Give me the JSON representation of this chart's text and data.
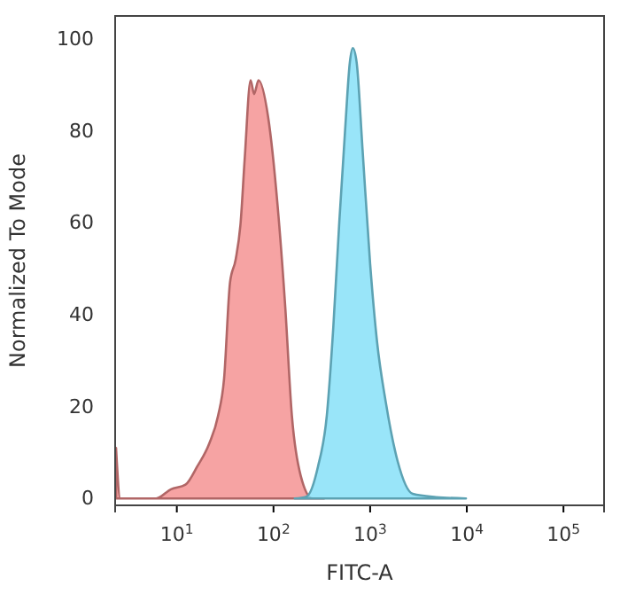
{
  "chart_data": {
    "type": "area",
    "xlabel": "FITC-A",
    "ylabel": "Normalized To Mode",
    "log": "x",
    "xlim": [
      2.3,
      263000
    ],
    "ylim": [
      -1.5,
      105
    ],
    "xticks": [
      {
        "value": 10,
        "label": "10$^{1}$"
      },
      {
        "value": 100,
        "label": "10$^{2}$"
      },
      {
        "value": 1000,
        "label": "10$^{3}$"
      },
      {
        "value": 10000,
        "label": "10$^{4}$"
      },
      {
        "value": 100000,
        "label": "10$^{5}$"
      }
    ],
    "yticks": [
      0,
      20,
      40,
      60,
      80,
      100
    ],
    "grid": false,
    "series": [
      {
        "color": "#f48c8c",
        "x": [
          2.35,
          2.6,
          3.2,
          6.1,
          8.7,
          12.3,
          16.3,
          21.7,
          26.7,
          30.8,
          35.5,
          40.6,
          45.7,
          50.4,
          58,
          63,
          70,
          88,
          110,
          132,
          155,
          191,
          253,
          333
        ],
        "values": [
          11,
          0,
          0,
          0,
          2,
          3,
          7,
          12,
          18,
          26,
          47,
          52,
          60,
          74,
          91,
          88,
          91,
          83,
          64,
          42,
          18,
          5,
          0,
          0
        ]
      },
      {
        "color": "#7fdff7",
        "x": [
          166,
          219,
          289,
          356,
          415,
          479,
          550,
          617,
          661,
          724,
          834,
          1000,
          1180,
          1450,
          1930,
          2760,
          4800,
          9800
        ],
        "values": [
          0,
          0.4,
          7,
          18,
          37,
          60,
          80,
          95,
          98,
          95,
          76,
          51,
          34,
          21,
          8,
          1,
          0.3,
          0
        ]
      }
    ]
  }
}
